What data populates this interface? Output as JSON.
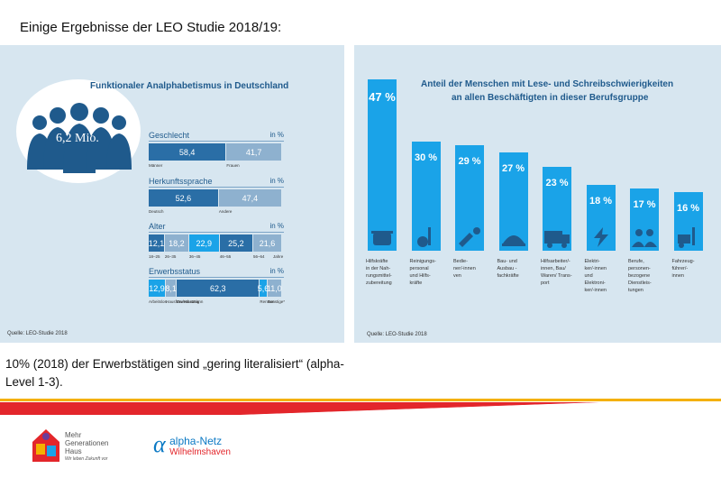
{
  "heading": "Einige Ergebnisse der LEO Studie 2018/19:",
  "left_panel": {
    "title": "Funktionaler Analphabetismus in Deutschland",
    "big_number": "6,2 Mio.",
    "source": "Quelle: LEO-Studie 2018",
    "unit": "in %"
  },
  "chart_data": [
    {
      "type": "bar",
      "title": "Funktionaler Analphabetismus in Deutschland",
      "sections": [
        {
          "name": "Geschlecht",
          "categories": [
            "Männer",
            "Frauen"
          ],
          "values": [
            58.4,
            41.7
          ],
          "labels": [
            "58,4",
            "41,7"
          ],
          "colors": [
            "#2a6ea6",
            "#8eb1cf"
          ]
        },
        {
          "name": "Herkunftssprache",
          "categories": [
            "Deutsch",
            "Andere"
          ],
          "values": [
            52.6,
            47.4
          ],
          "labels": [
            "52,6",
            "47,4"
          ],
          "colors": [
            "#2a6ea6",
            "#8eb1cf"
          ]
        },
        {
          "name": "Alter",
          "categories": [
            "18–25",
            "26–35",
            "36–45",
            "46–55",
            "56–64"
          ],
          "extra_label": "Jahre",
          "values": [
            12.1,
            18.2,
            22.9,
            25.2,
            21.6
          ],
          "labels": [
            "12,1",
            "18,2",
            "22,9",
            "25,2",
            "21,6"
          ],
          "colors": [
            "#2a6ea6",
            "#8eb1cf",
            "#1aa3e8",
            "#2a6ea6",
            "#8eb1cf"
          ]
        },
        {
          "name": "Erwerbsstatus",
          "categories": [
            "Arbeitslos",
            "Hausfrau/Hausmann",
            "Erwerbstätig",
            "Rentner",
            "Sonstige*"
          ],
          "values": [
            12.9,
            8.1,
            62.3,
            5.6,
            11.0
          ],
          "labels": [
            "12,9",
            "8,1",
            "62,3",
            "5,6",
            "11,0"
          ],
          "colors": [
            "#1aa3e8",
            "#8eb1cf",
            "#2a6ea6",
            "#1aa3e8",
            "#8eb1cf"
          ]
        }
      ]
    },
    {
      "type": "bar",
      "title": "Anteil der Menschen mit Lese- und Schreibschwierigkeiten an allen Beschäftigten in dieser Berufsgruppe",
      "categories": [
        "Hilfskräfte in der Nahrungsmittelzubereitung",
        "Reinigungspersonal und Hilfskräfte",
        "Bedienner/-innen",
        "Bau- und Ausbaufachkräfte",
        "Hilfsarbeiter/-innen, Bau/ Waren/ Transport",
        "Elektriker/-innen und Elektroniker/-innen",
        "Berufe, personenbezogene Dienstleistungen",
        "Fahrzeugführer/-innen"
      ],
      "values": [
        47,
        30,
        29,
        27,
        23,
        18,
        17,
        16
      ],
      "labels": [
        "47 %",
        "30 %",
        "29 %",
        "27 %",
        "23 %",
        "18 %",
        "17 %",
        "16 %"
      ]
    }
  ],
  "right_panel": {
    "title_line1": "Anteil der Menschen mit Lese- und Schreibschwierigkeiten",
    "title_line2": "an allen Beschäftigten in dieser Berufsgruppe",
    "source": "Quelle: LEO-Studie 2018",
    "col_labels": [
      [
        "Hilfskräfte",
        "in der Nah-",
        "rungsmittel-",
        "zubereitung"
      ],
      [
        "Reinigungs-",
        "personal",
        "und Hilfs-",
        "kräfte"
      ],
      [
        "Bedie-",
        "ner/-innen",
        "ven"
      ],
      [
        "Bau- und",
        "Ausbau -",
        "fachkräfte"
      ],
      [
        "Hilfsarbeiter/-",
        "innen, Bau/",
        "Waren/ Trans-",
        "port"
      ],
      [
        "Elektri-",
        "ker/-innen",
        "und",
        "Elektroni-",
        "ker/-innen"
      ],
      [
        "Berufe,",
        "personen-",
        "bezogene",
        "Dienstleis-",
        "tungen"
      ],
      [
        "Fahrzeug-",
        "führer/-",
        "innen"
      ]
    ]
  },
  "footer": {
    "text": "10% (2018) der Erwerbstätigen sind „gering literalisiert“ (alpha-Level 1-3).",
    "logo1_line1": "Mehr",
    "logo1_line2": "Generationen",
    "logo1_line3": "Haus",
    "logo1_tagline": "Wir leben Zukunft vor",
    "logo2_name": "alpha-Netz",
    "logo2_city": "Wilhelmshaven"
  }
}
